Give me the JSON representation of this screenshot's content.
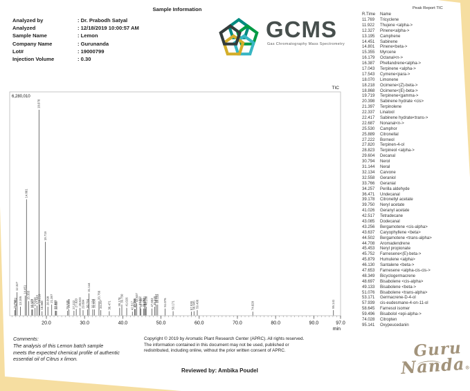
{
  "header": {
    "title": "Sample Information",
    "fields": [
      {
        "label": "Analyzed by",
        "value": ": Dr. Prabodh Satyal"
      },
      {
        "label": "Analyzed",
        "value": ": 12/18/2019 10:00:57 AM"
      },
      {
        "label": "Sample Name",
        "value": ": Lemon"
      },
      {
        "label": "Company Name",
        "value": ": Gurunanda"
      },
      {
        "label": "Lot#",
        "value": ": 19000799"
      },
      {
        "label": "Injection Volume",
        "value": ": 0.30"
      }
    ]
  },
  "logo": {
    "text": "GCMS",
    "subtitle": "Gas Chromatography Mass Spectrometry",
    "text_color": "#474f4d",
    "pentagon_colors": [
      "#008b80",
      "#009a44",
      "#38b6c3",
      "#d4ae2a",
      "#343c3b"
    ]
  },
  "peak_report": {
    "title": "Peak Report TIC",
    "columns": [
      "R.Time",
      "Name"
    ],
    "rows": [
      [
        "11.769",
        "Tricyclene"
      ],
      [
        "11.922",
        "Thujene <alpha->"
      ],
      [
        "12.327",
        "Pinene<alpha->"
      ],
      [
        "13.195",
        "Camphene"
      ],
      [
        "14.451",
        "Sabinene"
      ],
      [
        "14.801",
        "Pinene<beta->"
      ],
      [
        "15.355",
        "Myrcene"
      ],
      [
        "16.179",
        "Octanal<n->"
      ],
      [
        "16.387",
        "Phellandrene<alpha->"
      ],
      [
        "17.043",
        "Terpinene <alpha->"
      ],
      [
        "17.543",
        "Cymene<para->"
      ],
      [
        "18.070",
        "Limonene"
      ],
      [
        "18.218",
        "Ocimene<(Z)-beta->"
      ],
      [
        "18.868",
        "Ocimene<(E)-beta->"
      ],
      [
        "19.719",
        "Terpinene<gamma->"
      ],
      [
        "20.398",
        "Sabinene hydrate <cis>"
      ],
      [
        "21.397",
        "Terpinolene"
      ],
      [
        "22.337",
        "Linalool"
      ],
      [
        "22.417",
        "Sabinene hydrate<trans->"
      ],
      [
        "22.687",
        "Nonanal<n->"
      ],
      [
        "25.530",
        "Camphor"
      ],
      [
        "25.889",
        "Citronellal"
      ],
      [
        "27.222",
        "Borneol"
      ],
      [
        "27.820",
        "Terpinen-4-ol"
      ],
      [
        "28.823",
        "Terpineol <alpha->"
      ],
      [
        "29.604",
        "Decanal"
      ],
      [
        "30.794",
        "Nerol"
      ],
      [
        "31.144",
        "Neral"
      ],
      [
        "32.134",
        "Carvone"
      ],
      [
        "32.558",
        "Geraniol"
      ],
      [
        "33.766",
        "Geranial"
      ],
      [
        "34.257",
        "Perilla aldehyde"
      ],
      [
        "36.471",
        "Undecanal"
      ],
      [
        "39.178",
        "Citronellyl acetate"
      ],
      [
        "39.750",
        "Neryl acetate"
      ],
      [
        "41.026",
        "Geranyl acetate"
      ],
      [
        "42.517",
        "Tetradecane"
      ],
      [
        "43.085",
        "Dodecanal"
      ],
      [
        "43.256",
        "Bergamotene <cis-alpha>"
      ],
      [
        "43.637",
        "Caryophyllene <beta>"
      ],
      [
        "44.502",
        "Bergamotene <trans-alpha>"
      ],
      [
        "44.708",
        "Aromadendrene"
      ],
      [
        "45.453",
        "Neryl propionate"
      ],
      [
        "45.752",
        "Farnesene<(E)-beta->"
      ],
      [
        "45.879",
        "Humulene <alpha>"
      ],
      [
        "46.130",
        "Santalene <beta->"
      ],
      [
        "47.653",
        "Farnesene <alpha-cis-cis->"
      ],
      [
        "48.349",
        "Bicyclogermacrene"
      ],
      [
        "48.697",
        "Bisabolene <cis-alpha>"
      ],
      [
        "49.133",
        "Bisabolene <beta->"
      ],
      [
        "51.076",
        "Bisabolene <trans-alpha>"
      ],
      [
        "53.171",
        "Germacrene-D-4-ol"
      ],
      [
        "57.939",
        "cis-eudesmane-4-on-11-ol"
      ],
      [
        "58.645",
        "Farnesol isomer"
      ],
      [
        "59.496",
        "Bisabolol <epi-alpha->"
      ],
      [
        "74.028",
        "Citropten"
      ],
      [
        "95.141",
        "Oxypeucedanin"
      ]
    ]
  },
  "chart_data": {
    "type": "line",
    "subtype": "gc-chromatogram",
    "title": "TIC",
    "y_max_label": "6,280,010",
    "x_unit": "min",
    "x_range": [
      10.4,
      97.0
    ],
    "x_tick_labels": [
      "20.0",
      "30.0",
      "40.0",
      "50.0",
      "60.0",
      "70.0",
      "80.0",
      "90.0",
      "97.0"
    ],
    "x_ticks": [
      20,
      30,
      40,
      50,
      60,
      70,
      80,
      90,
      97
    ],
    "grid": false,
    "legend": "none",
    "peaks": [
      {
        "rt": 11.769,
        "h": 0.025
      },
      {
        "rt": 11.922,
        "h": 0.035
      },
      {
        "rt": 12.327,
        "h": 0.105
      },
      {
        "rt": 13.195,
        "h": 0.04
      },
      {
        "rt": 14.451,
        "h": 0.09
      },
      {
        "rt": 14.801,
        "h": 0.52
      },
      {
        "rt": 15.355,
        "h": 0.065
      },
      {
        "rt": 16.179,
        "h": 0.028
      },
      {
        "rt": 16.387,
        "h": 0.028
      },
      {
        "rt": 17.043,
        "h": 0.035
      },
      {
        "rt": 17.543,
        "h": 0.045
      },
      {
        "rt": 18.07,
        "h": 0.92
      },
      {
        "rt": 18.218,
        "h": 0.05
      },
      {
        "rt": 18.868,
        "h": 0.02
      },
      {
        "rt": 19.719,
        "h": 0.33
      },
      {
        "rt": 20.398,
        "h": 0.04
      },
      {
        "rt": 21.397,
        "h": 0.05
      },
      {
        "rt": 22.337,
        "h": 0.022
      },
      {
        "rt": 22.417,
        "h": 0.022
      },
      {
        "rt": 22.687,
        "h": 0.022
      },
      {
        "rt": 25.53,
        "h": 0.022
      },
      {
        "rt": 25.889,
        "h": 0.028
      },
      {
        "rt": 27.222,
        "h": 0.022
      },
      {
        "rt": 27.82,
        "h": 0.03
      },
      {
        "rt": 28.823,
        "h": 0.035
      },
      {
        "rt": 29.604,
        "h": 0.025
      },
      {
        "rt": 30.794,
        "h": 0.028
      },
      {
        "rt": 31.144,
        "h": 0.1
      },
      {
        "rt": 32.134,
        "h": 0.028
      },
      {
        "rt": 32.558,
        "h": 0.028
      },
      {
        "rt": 33.766,
        "h": 0.065
      },
      {
        "rt": 34.257,
        "h": 0.025
      },
      {
        "rt": 36.471,
        "h": 0.02
      },
      {
        "rt": 39.178,
        "h": 0.035
      },
      {
        "rt": 39.75,
        "h": 0.05
      },
      {
        "rt": 41.026,
        "h": 0.035
      },
      {
        "rt": 42.517,
        "h": 0.018
      },
      {
        "rt": 43.085,
        "h": 0.03
      },
      {
        "rt": 43.256,
        "h": 0.03
      },
      {
        "rt": 43.637,
        "h": 0.055
      },
      {
        "rt": 44.502,
        "h": 0.04
      },
      {
        "rt": 44.708,
        "h": 0.032
      },
      {
        "rt": 45.453,
        "h": 0.032
      },
      {
        "rt": 45.752,
        "h": 0.04
      },
      {
        "rt": 45.879,
        "h": 0.032
      },
      {
        "rt": 46.13,
        "h": 0.04
      },
      {
        "rt": 47.653,
        "h": 0.032
      },
      {
        "rt": 48.349,
        "h": 0.04
      },
      {
        "rt": 48.697,
        "h": 0.05
      },
      {
        "rt": 49.133,
        "h": 0.05
      },
      {
        "rt": 51.076,
        "h": 0.032
      },
      {
        "rt": 53.171,
        "h": 0.02
      },
      {
        "rt": 57.939,
        "h": 0.018
      },
      {
        "rt": 58.645,
        "h": 0.02
      },
      {
        "rt": 59.496,
        "h": 0.025
      },
      {
        "rt": 74.028,
        "h": 0.018
      },
      {
        "rt": 95.141,
        "h": 0.025
      }
    ]
  },
  "footer": {
    "comments_label": "Comments:",
    "comments_lines": [
      "The analysis of this Lemon batch sample",
      "meets the expected chemical profile of authentic",
      "essential oil of Citrus x limon."
    ],
    "copyright_lines": [
      "Copyright © 2019 by Aromatic Plant Research Center (APRC). All rights reserved.",
      "The information contained in this document may not be used, published or",
      "redistributed, including online, without the prior written consent of APRC."
    ],
    "reviewed_by": "Reviewed by: Ambika Poudel"
  },
  "brand": {
    "line1": "Guru",
    "line2": "Nanda",
    "reg": "®",
    "color": "#a2937b"
  },
  "colors": {
    "background_mat": "#f6dea1",
    "peak_line": "#4a4a4a",
    "plot_border": "#b9b9b9"
  }
}
